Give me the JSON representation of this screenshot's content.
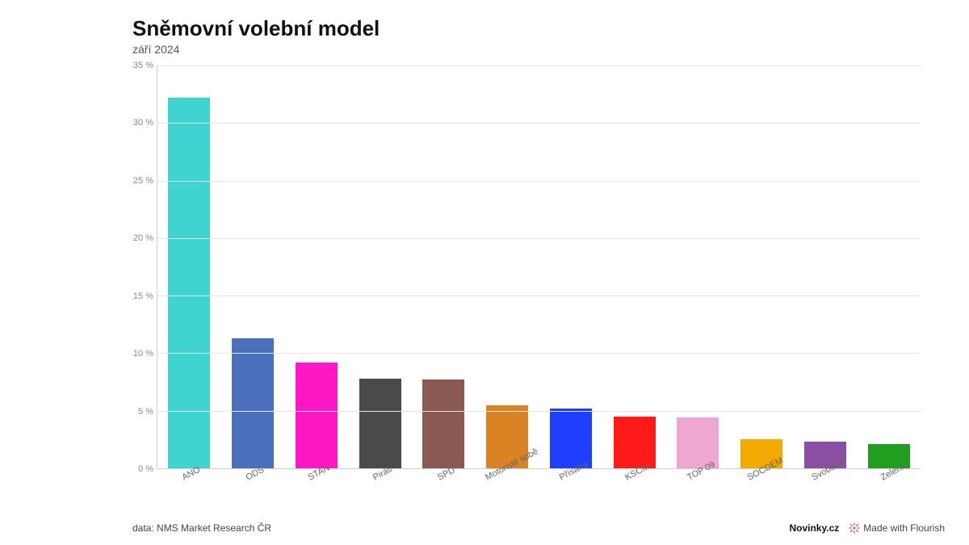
{
  "header": {
    "title": "Sněmovní volební model",
    "subtitle": "září 2024"
  },
  "chart": {
    "type": "bar",
    "ylim": [
      0,
      35
    ],
    "ytick_step": 5,
    "ytick_suffix": " %",
    "background_color": "#ffffff",
    "grid_color": "#e6e6e6",
    "axis_color": "#cfcfcf",
    "tick_font_color": "#888888",
    "xlabel_font_color": "#666666",
    "tick_fontsize": 11,
    "xlabel_rotation_deg": -28,
    "bar_width_ratio": 0.66,
    "categories": [
      "ANO",
      "ODS",
      "STAN",
      "Piráti",
      "SPD",
      "Motoristé sobě",
      "Přísaha",
      "KSČM",
      "TOP 09",
      "SOCDEM",
      "Svobodní",
      "Zelení"
    ],
    "values": [
      32.2,
      11.3,
      9.2,
      7.8,
      7.7,
      5.5,
      5.2,
      4.5,
      4.4,
      2.5,
      2.3,
      2.1
    ],
    "bar_colors": [
      "#3fd4cf",
      "#4a6fbc",
      "#ff17c6",
      "#4a4a4a",
      "#8a5a52",
      "#d98324",
      "#1f3fff",
      "#ff1a1a",
      "#eda7d1",
      "#f2a900",
      "#8a4fa3",
      "#1f9e1f"
    ]
  },
  "footer": {
    "source": "data: NMS Market Research ČR",
    "brand": "Novinky.cz",
    "made_with": "Made with Flourish"
  }
}
